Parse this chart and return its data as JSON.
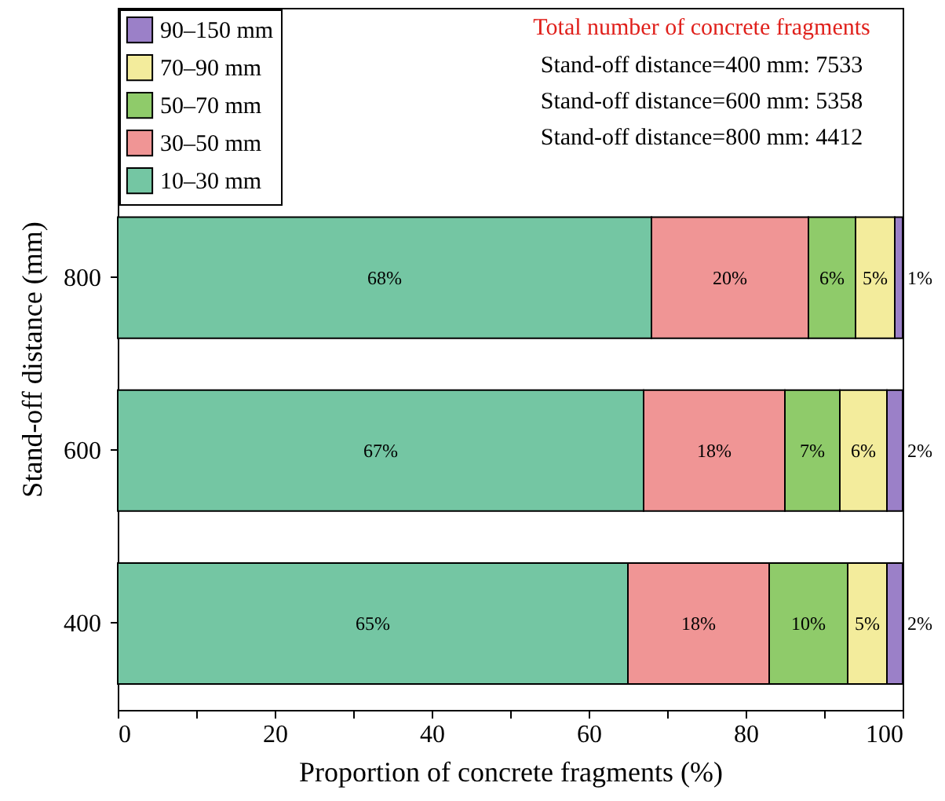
{
  "chart_data": {
    "type": "bar",
    "orientation": "horizontal",
    "stacked": true,
    "categories": [
      "800",
      "600",
      "400"
    ],
    "series": [
      {
        "name": "10–30 mm",
        "color": "#74c6a3",
        "values": [
          68,
          67,
          65
        ],
        "value_labels": [
          "68%",
          "67%",
          "65%"
        ]
      },
      {
        "name": "30–50 mm",
        "color": "#f09595",
        "values": [
          20,
          18,
          18
        ],
        "value_labels": [
          "20%",
          "18%",
          "18%"
        ]
      },
      {
        "name": "50–70 mm",
        "color": "#8fcb6a",
        "values": [
          6,
          7,
          10
        ],
        "value_labels": [
          "6%",
          "7%",
          "10%"
        ]
      },
      {
        "name": "70–90 mm",
        "color": "#f3ec9c",
        "values": [
          5,
          6,
          5
        ],
        "value_labels": [
          "5%",
          "6%",
          "5%"
        ]
      },
      {
        "name": "90–150 mm",
        "color": "#9b80c8",
        "values": [
          1,
          2,
          2
        ],
        "value_labels": [
          "1%",
          "2%",
          "2%"
        ]
      }
    ],
    "xlim": [
      0,
      100
    ],
    "xticks": [
      0,
      {
        "value": 10,
        "label": null
      },
      20,
      {
        "value": 30,
        "label": null
      },
      40,
      {
        "value": 50,
        "label": null
      },
      60,
      {
        "value": 70,
        "label": null
      },
      80,
      {
        "value": 90,
        "label": null
      },
      100
    ],
    "xlabel": "Proportion of concrete fragments (%)",
    "ylabel": "Stand-off distance (mm)",
    "legend": "top left",
    "grid": false,
    "annotations": [
      "Total number of concrete fragments",
      "Stand-off distance=400 mm: 7533",
      "Stand-off distance=600 mm: 5358",
      "Stand-off distance=800 mm: 4412"
    ]
  }
}
